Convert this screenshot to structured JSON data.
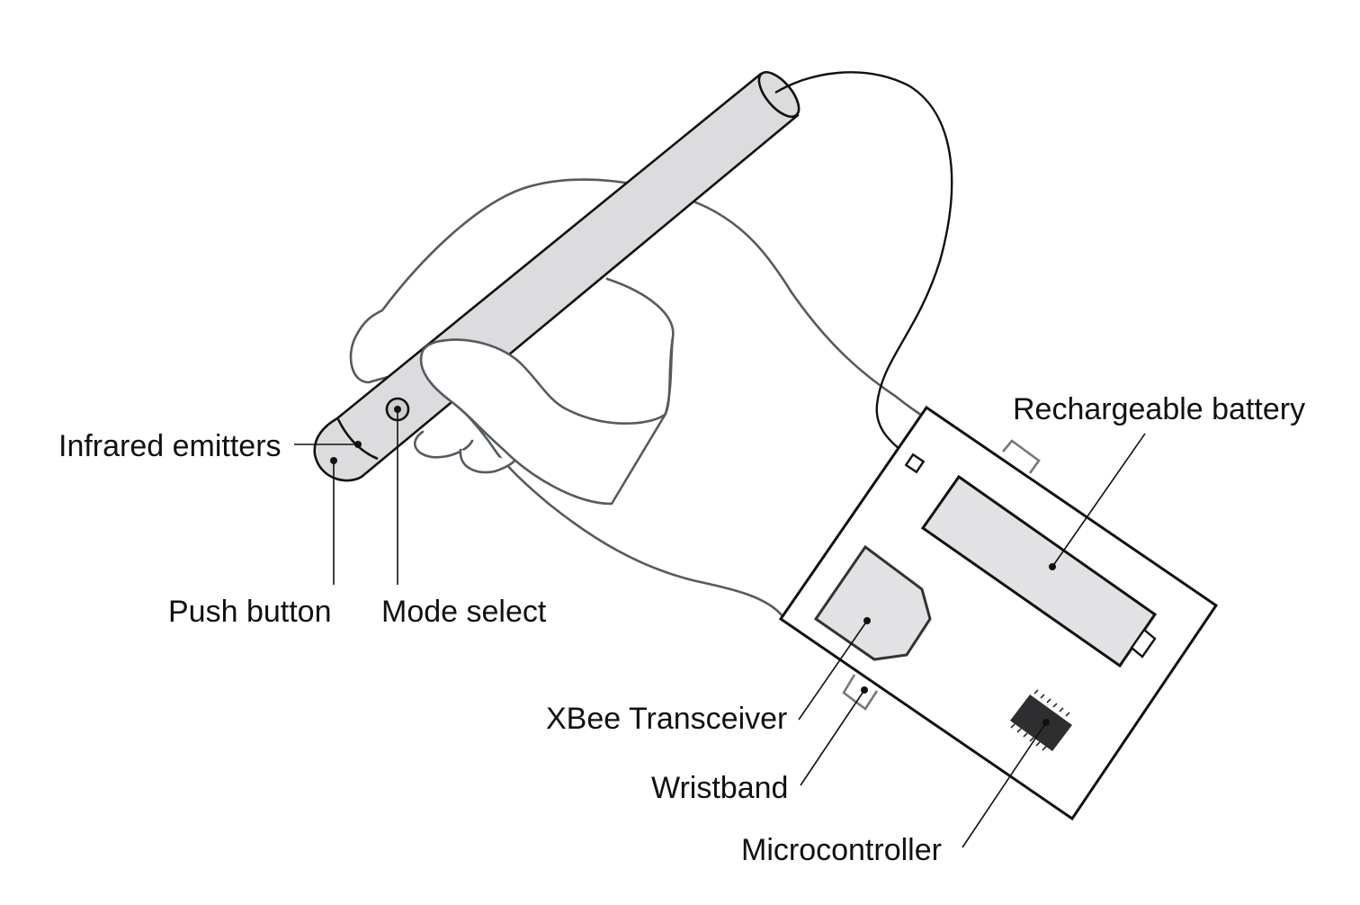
{
  "labels": {
    "infrared_emitters": "Infrared emitters",
    "push_button": "Push button",
    "mode_select": "Mode select",
    "rechargeable_battery": "Rechargeable battery",
    "xbee_transceiver": "XBee Transceiver",
    "wristband": "Wristband",
    "microcontroller": "Microcontroller"
  },
  "colors": {
    "line": "#111111",
    "hand_outline": "#555a60",
    "pen_fill": "#dcdcde",
    "component_fill": "#e2e2e4",
    "chip_fill": "#2e2e30"
  }
}
